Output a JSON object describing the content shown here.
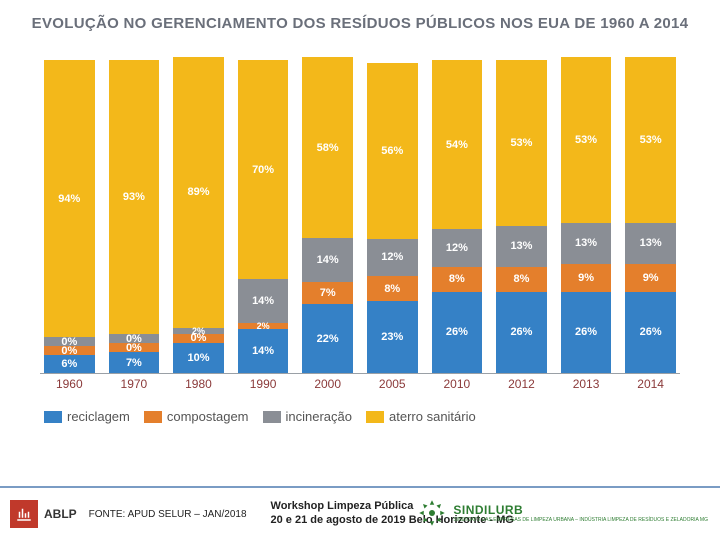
{
  "chart": {
    "type": "stacked-bar-100",
    "title": "EVOLUÇÃO NO GERENCIAMENTO DOS RESÍDUOS\nPÚBLICOS NOS EUA DE 1960 A 2014",
    "title_color": "#6a6f7a",
    "title_fontsize": 15,
    "colors": {
      "reciclagem": "#3581c6",
      "compostagem": "#e47f2c",
      "incineracao": "#8a8e95",
      "aterro": "#f3b81a"
    },
    "background_color": "#ffffff",
    "categories": [
      "1960",
      "1970",
      "1980",
      "1990",
      "2000",
      "2005",
      "2010",
      "2012",
      "2013",
      "2014"
    ],
    "series_order": [
      "reciclagem",
      "compostagem",
      "incineracao",
      "aterro"
    ],
    "series": {
      "reciclagem": [
        6,
        7,
        10,
        14,
        22,
        23,
        26,
        26,
        26,
        26
      ],
      "compostagem": [
        0,
        0,
        0,
        2,
        7,
        8,
        8,
        8,
        9,
        9
      ],
      "incineracao": [
        0,
        0,
        2,
        14,
        14,
        12,
        12,
        13,
        13,
        13
      ],
      "aterro": [
        94,
        93,
        89,
        70,
        58,
        56,
        54,
        53,
        53,
        53
      ]
    },
    "zero_label": "0%",
    "bar_heights_pct": [
      100,
      100,
      101,
      100,
      101,
      99,
      100,
      100,
      101,
      101
    ],
    "xlabel_color": "#8b3a3a",
    "label_fontsize": 11,
    "legend": [
      {
        "key": "reciclagem",
        "label": "reciclagem"
      },
      {
        "key": "compostagem",
        "label": "compostagem"
      },
      {
        "key": "incineracao",
        "label": "incineração"
      },
      {
        "key": "aterro",
        "label": "aterro sanitário"
      }
    ]
  },
  "footer": {
    "source": "FONTE: APUD SELUR – JAN/2018",
    "org_abbr": "ABLP",
    "event_line1": "Workshop Limpeza Pública",
    "event_line2": "20 e 21 de agosto de 2019 Belo Horizonte - MG",
    "sindi_name": "SINDILURB",
    "sindi_sub": "SINDICATO DAS EMPRESAS DE LIMPEZA URBANA – INDÚSTRIA LIMPEZA DE RESÍDUOS E ZELADORIA MG"
  }
}
